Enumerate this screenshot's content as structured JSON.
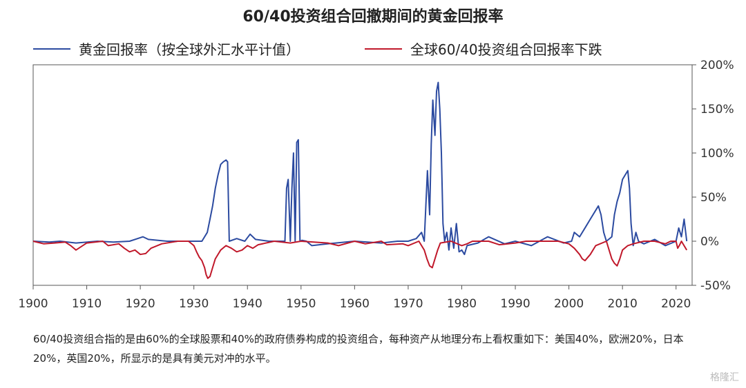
{
  "chart_data": {
    "type": "line",
    "title": "60/40投资组合回撤期间的黄金回报率",
    "xlabel": "",
    "ylabel": "",
    "xlim": [
      1900,
      2023
    ],
    "ylim": [
      -50,
      200
    ],
    "x_ticks": [
      1900,
      1910,
      1920,
      1930,
      1940,
      1950,
      1960,
      1970,
      1980,
      1990,
      2000,
      2010,
      2020
    ],
    "y_ticks": [
      -50,
      0,
      50,
      100,
      150,
      200
    ],
    "y_tick_labels": [
      "-50%",
      "0%",
      "50%",
      "100%",
      "150%",
      "200%"
    ],
    "grid": false,
    "legend_position": "top",
    "series": [
      {
        "name": "黄金回报率（按全球外汇水平计值）",
        "color": "#2b4aa0",
        "x": [
          1900,
          1903,
          1905,
          1908,
          1912,
          1915,
          1918,
          1919.5,
          1920.5,
          1921.5,
          1925,
          1929.5,
          1931.5,
          1932.5,
          1933,
          1933.5,
          1934,
          1934.5,
          1935,
          1935.5,
          1936,
          1936.3,
          1936.6,
          1938,
          1939.5,
          1940.5,
          1941.5,
          1944,
          1947,
          1947.3,
          1947.6,
          1948,
          1948.3,
          1948.6,
          1948.9,
          1949.2,
          1949.5,
          1949.8,
          1950.2,
          1951,
          1952,
          1955,
          1960,
          1965,
          1968,
          1970,
          1971.5,
          1972.5,
          1973,
          1973.3,
          1973.6,
          1974,
          1974.3,
          1974.6,
          1975,
          1975.3,
          1975.6,
          1975.9,
          1976.2,
          1976.5,
          1976.8,
          1977.2,
          1977.6,
          1978,
          1978.5,
          1979,
          1979.5,
          1980,
          1980.5,
          1981,
          1983,
          1985,
          1988,
          1990,
          1993,
          1996,
          1999,
          2000.5,
          2001,
          2002,
          2003,
          2004,
          2005,
          2005.5,
          2006,
          2006.5,
          2007,
          2008,
          2008.5,
          2009,
          2009.5,
          2010,
          2010.5,
          2011,
          2011.3,
          2011.6,
          2012,
          2012.5,
          2013,
          2014,
          2016,
          2018,
          2020,
          2020.5,
          2021,
          2021.5,
          2022
        ],
        "y": [
          0,
          -1,
          0,
          -2,
          0,
          -1,
          0,
          3,
          5,
          2,
          0,
          0,
          0,
          10,
          25,
          40,
          60,
          75,
          87,
          90,
          92,
          90,
          0,
          3,
          0,
          8,
          2,
          0,
          0,
          60,
          70,
          0,
          60,
          100,
          0,
          112,
          115,
          0,
          1,
          0,
          -5,
          -3,
          0,
          -2,
          0,
          0,
          3,
          10,
          0,
          40,
          80,
          30,
          110,
          160,
          120,
          170,
          180,
          150,
          100,
          20,
          0,
          10,
          -10,
          15,
          -8,
          20,
          -12,
          -10,
          -15,
          -5,
          -2,
          5,
          -3,
          0,
          -5,
          5,
          -2,
          0,
          10,
          5,
          15,
          25,
          35,
          40,
          30,
          10,
          0,
          5,
          30,
          45,
          55,
          70,
          75,
          80,
          60,
          20,
          -5,
          10,
          0,
          -3,
          2,
          -5,
          0,
          15,
          5,
          25,
          0
        ]
      },
      {
        "name": "全球60/40投资组合回报率下跌",
        "color": "#c0182a",
        "x": [
          1900,
          1902,
          1904,
          1906,
          1907,
          1908,
          1910,
          1913,
          1914,
          1916,
          1917,
          1918,
          1919,
          1920,
          1921,
          1922,
          1924,
          1927,
          1929,
          1930,
          1930.5,
          1931,
          1931.5,
          1932,
          1932.3,
          1932.6,
          1933,
          1933.5,
          1934,
          1935,
          1936,
          1937,
          1938,
          1939,
          1940,
          1941,
          1942,
          1945,
          1948,
          1950,
          1955,
          1957,
          1960,
          1962,
          1965,
          1966,
          1969,
          1970,
          1972,
          1973,
          1973.5,
          1974,
          1974.5,
          1975,
          1975.5,
          1976,
          1978,
          1980,
          1981,
          1982,
          1985,
          1987,
          1990,
          1992,
          1995,
          1998,
          2000,
          2001,
          2002,
          2002.5,
          2003,
          2004,
          2005,
          2007,
          2007.5,
          2008,
          2008.5,
          2009,
          2009.5,
          2010,
          2011,
          2012,
          2014,
          2016,
          2018,
          2019,
          2020,
          2020.3,
          2020.6,
          2021,
          2022
        ],
        "y": [
          0,
          -3,
          -2,
          -1,
          -5,
          -10,
          -2,
          0,
          -5,
          -3,
          -8,
          -12,
          -10,
          -15,
          -14,
          -8,
          -3,
          0,
          0,
          -5,
          -12,
          -18,
          -22,
          -30,
          -38,
          -42,
          -40,
          -30,
          -20,
          -10,
          -5,
          -8,
          -12,
          -10,
          -5,
          -8,
          -4,
          0,
          -2,
          0,
          -2,
          -5,
          0,
          -3,
          0,
          -4,
          -3,
          -5,
          0,
          -10,
          -20,
          -28,
          -30,
          -20,
          -10,
          -2,
          0,
          -5,
          -3,
          0,
          0,
          -4,
          -2,
          0,
          0,
          0,
          -3,
          -8,
          -15,
          -20,
          -22,
          -15,
          -5,
          0,
          -10,
          -20,
          -25,
          -28,
          -20,
          -10,
          -5,
          -3,
          0,
          0,
          -3,
          0,
          0,
          -8,
          -5,
          0,
          -10
        ]
      }
    ]
  },
  "note": "60/40投资组合指的是由60%的全球股票和40%的政府债券构成的投资组合，每种资产从地理分布上看权重如下：美国40%，欧洲20%，日本20%，英国20%，所显示的是具有美元对冲的水平。",
  "watermark": "格隆汇"
}
